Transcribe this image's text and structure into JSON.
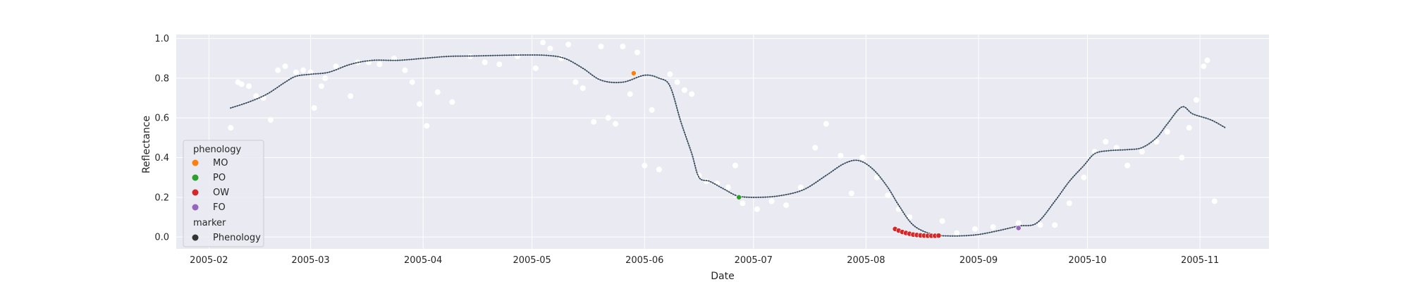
{
  "chart_data": {
    "type": "scatter",
    "title": "",
    "xlabel": "Date",
    "ylabel": "Reflectance",
    "xlim": [
      "2005-01-23",
      "2005-11-20"
    ],
    "ylim": [
      -0.06,
      1.02
    ],
    "grid": true,
    "x_ticks": [
      "2005-02",
      "2005-03",
      "2005-04",
      "2005-05",
      "2005-06",
      "2005-07",
      "2005-08",
      "2005-09",
      "2005-10",
      "2005-11"
    ],
    "y_ticks": [
      "0.0",
      "0.2",
      "0.4",
      "0.6",
      "0.8",
      "1.0"
    ],
    "colors": {
      "plot_bg": "#eaeaf2",
      "grid": "#ffffff",
      "raw_points": "#ffffff",
      "smooth_line": "#4c6072",
      "MO": "#ff7f0e",
      "PO": "#2ca02c",
      "OW": "#d62728",
      "FO": "#9467bd",
      "Phenology": "#333333"
    },
    "smooth_series": {
      "x": [
        "2005-02-07",
        "2005-02-12",
        "2005-02-17",
        "2005-02-22",
        "2005-02-25",
        "2005-03-01",
        "2005-03-06",
        "2005-03-12",
        "2005-03-18",
        "2005-03-25",
        "2005-04-01",
        "2005-04-08",
        "2005-04-15",
        "2005-04-22",
        "2005-04-29",
        "2005-05-05",
        "2005-05-10",
        "2005-05-15",
        "2005-05-20",
        "2005-05-26",
        "2005-06-01",
        "2005-06-05",
        "2005-06-08",
        "2005-06-11",
        "2005-06-14",
        "2005-06-16",
        "2005-06-19",
        "2005-06-23",
        "2005-06-27",
        "2005-07-03",
        "2005-07-09",
        "2005-07-15",
        "2005-07-21",
        "2005-07-26",
        "2005-07-30",
        "2005-08-03",
        "2005-08-07",
        "2005-08-10",
        "2005-08-14",
        "2005-08-19",
        "2005-08-24",
        "2005-08-31",
        "2005-09-06",
        "2005-09-12",
        "2005-09-17",
        "2005-09-22",
        "2005-09-26",
        "2005-09-30",
        "2005-10-03",
        "2005-10-07",
        "2005-10-12",
        "2005-10-16",
        "2005-10-20",
        "2005-10-23",
        "2005-10-27",
        "2005-10-30",
        "2005-11-04",
        "2005-11-08"
      ],
      "y": [
        0.65,
        0.68,
        0.72,
        0.78,
        0.81,
        0.82,
        0.83,
        0.87,
        0.89,
        0.89,
        0.9,
        0.91,
        0.912,
        0.915,
        0.917,
        0.915,
        0.9,
        0.85,
        0.79,
        0.78,
        0.815,
        0.8,
        0.76,
        0.58,
        0.42,
        0.3,
        0.28,
        0.24,
        0.205,
        0.2,
        0.21,
        0.24,
        0.31,
        0.37,
        0.385,
        0.34,
        0.25,
        0.16,
        0.06,
        0.015,
        0.005,
        0.01,
        0.03,
        0.055,
        0.07,
        0.18,
        0.28,
        0.36,
        0.42,
        0.435,
        0.44,
        0.45,
        0.5,
        0.57,
        0.655,
        0.62,
        0.59,
        0.55
      ]
    },
    "raw_points": {
      "x": [
        "2005-02-07",
        "2005-02-09",
        "2005-02-10",
        "2005-02-12",
        "2005-02-14",
        "2005-02-16",
        "2005-02-18",
        "2005-02-20",
        "2005-02-22",
        "2005-02-25",
        "2005-02-27",
        "2005-03-01",
        "2005-03-02",
        "2005-03-04",
        "2005-03-05",
        "2005-03-08",
        "2005-03-12",
        "2005-03-14",
        "2005-03-17",
        "2005-03-20",
        "2005-03-24",
        "2005-03-27",
        "2005-03-29",
        "2005-03-31",
        "2005-04-02",
        "2005-04-05",
        "2005-04-09",
        "2005-04-14",
        "2005-04-18",
        "2005-04-22",
        "2005-04-27",
        "2005-05-02",
        "2005-05-04",
        "2005-05-06",
        "2005-05-09",
        "2005-05-11",
        "2005-05-13",
        "2005-05-15",
        "2005-05-18",
        "2005-05-20",
        "2005-05-22",
        "2005-05-24",
        "2005-05-26",
        "2005-05-28",
        "2005-05-30",
        "2005-06-01",
        "2005-06-03",
        "2005-06-05",
        "2005-06-08",
        "2005-06-10",
        "2005-06-12",
        "2005-06-14",
        "2005-06-16",
        "2005-06-18",
        "2005-06-21",
        "2005-06-24",
        "2005-06-26",
        "2005-06-28",
        "2005-07-02",
        "2005-07-06",
        "2005-07-10",
        "2005-07-14",
        "2005-07-18",
        "2005-07-21",
        "2005-07-25",
        "2005-07-28",
        "2005-07-31",
        "2005-08-04",
        "2005-08-07",
        "2005-08-10",
        "2005-08-13",
        "2005-08-18",
        "2005-08-22",
        "2005-08-26",
        "2005-08-31",
        "2005-09-05",
        "2005-09-12",
        "2005-09-18",
        "2005-09-22",
        "2005-09-26",
        "2005-09-30",
        "2005-10-03",
        "2005-10-06",
        "2005-10-09",
        "2005-10-12",
        "2005-10-16",
        "2005-10-20",
        "2005-10-23",
        "2005-10-27",
        "2005-10-29",
        "2005-10-31",
        "2005-11-02",
        "2005-11-03",
        "2005-11-05"
      ],
      "y": [
        0.55,
        0.78,
        0.77,
        0.76,
        0.71,
        0.7,
        0.59,
        0.84,
        0.86,
        0.83,
        0.84,
        0.83,
        0.65,
        0.76,
        0.8,
        0.86,
        0.71,
        0.88,
        0.88,
        0.87,
        0.9,
        0.84,
        0.78,
        0.67,
        0.56,
        0.73,
        0.68,
        0.91,
        0.88,
        0.87,
        0.91,
        0.85,
        0.98,
        0.95,
        0.9,
        0.97,
        0.78,
        0.75,
        0.58,
        0.96,
        0.6,
        0.57,
        0.96,
        0.72,
        0.93,
        0.36,
        0.64,
        0.34,
        0.82,
        0.78,
        0.74,
        0.72,
        0.31,
        0.28,
        0.27,
        0.25,
        0.36,
        0.17,
        0.14,
        0.18,
        0.16,
        0.25,
        0.45,
        0.57,
        0.41,
        0.22,
        0.4,
        0.3,
        0.21,
        0.14,
        0.1,
        0.01,
        0.08,
        0.02,
        0.04,
        0.05,
        0.07,
        0.06,
        0.06,
        0.17,
        0.3,
        0.43,
        0.48,
        0.45,
        0.36,
        0.43,
        0.48,
        0.53,
        0.4,
        0.55,
        0.69,
        0.86,
        0.89,
        0.18
      ]
    },
    "phenology": {
      "legend_title": "phenology",
      "marker_title": "marker",
      "marker_label": "Phenology",
      "categories": [
        {
          "name": "MO",
          "points": [
            {
              "x": "2005-05-29",
              "y": 0.825
            }
          ]
        },
        {
          "name": "PO",
          "points": [
            {
              "x": "2005-06-27",
              "y": 0.2
            }
          ]
        },
        {
          "name": "OW",
          "points": [
            {
              "x": "2005-08-09",
              "y": 0.04
            },
            {
              "x": "2005-08-10",
              "y": 0.032
            },
            {
              "x": "2005-08-11",
              "y": 0.025
            },
            {
              "x": "2005-08-12",
              "y": 0.02
            },
            {
              "x": "2005-08-13",
              "y": 0.016
            },
            {
              "x": "2005-08-14",
              "y": 0.012
            },
            {
              "x": "2005-08-15",
              "y": 0.01
            },
            {
              "x": "2005-08-16",
              "y": 0.008
            },
            {
              "x": "2005-08-17",
              "y": 0.007
            },
            {
              "x": "2005-08-18",
              "y": 0.006
            },
            {
              "x": "2005-08-19",
              "y": 0.006
            },
            {
              "x": "2005-08-20",
              "y": 0.006
            },
            {
              "x": "2005-08-21",
              "y": 0.007
            }
          ]
        },
        {
          "name": "FO",
          "points": [
            {
              "x": "2005-09-12",
              "y": 0.045
            }
          ]
        }
      ]
    },
    "legend_position": "lower-left"
  }
}
